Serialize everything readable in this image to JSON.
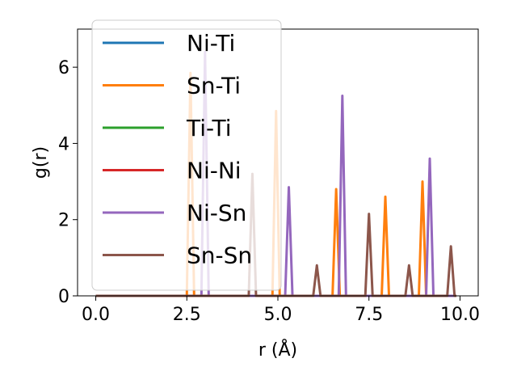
{
  "chart_data": {
    "type": "line",
    "title": "",
    "xlabel": "r (Å)",
    "ylabel": "g(r)",
    "xlim": [
      -0.5,
      10.5
    ],
    "ylim": [
      0,
      7
    ],
    "x_ticks": [
      0.0,
      2.5,
      5.0,
      7.5,
      10.0
    ],
    "x_tick_labels": [
      "0.0",
      "2.5",
      "5.0",
      "7.5",
      "10.0"
    ],
    "y_ticks": [
      0,
      2,
      4,
      6
    ],
    "y_tick_labels": [
      "0",
      "2",
      "4",
      "6"
    ],
    "grid": false,
    "legend_position": "top-left",
    "series": [
      {
        "name": "Ni-Ti",
        "color": "#1f77b4",
        "peaks": []
      },
      {
        "name": "Sn-Ti",
        "color": "#ff7f0e",
        "peaks": [
          [
            2.6,
            5.85
          ],
          [
            4.95,
            4.85
          ],
          [
            6.6,
            2.8
          ],
          [
            7.95,
            2.6
          ],
          [
            8.97,
            3.0
          ]
        ]
      },
      {
        "name": "Ti-Ti",
        "color": "#2ca02c",
        "peaks": []
      },
      {
        "name": "Ni-Ni",
        "color": "#d62728",
        "peaks": []
      },
      {
        "name": "Ni-Sn",
        "color": "#9467bd",
        "peaks": [
          [
            3.0,
            6.4
          ],
          [
            5.3,
            2.85
          ],
          [
            6.77,
            5.25
          ],
          [
            9.17,
            3.6
          ]
        ]
      },
      {
        "name": "Sn-Sn",
        "color": "#8c564b",
        "peaks": [
          [
            4.3,
            3.2
          ],
          [
            6.07,
            0.8
          ],
          [
            7.5,
            2.15
          ],
          [
            8.6,
            0.8
          ],
          [
            9.75,
            1.3
          ]
        ]
      }
    ]
  }
}
